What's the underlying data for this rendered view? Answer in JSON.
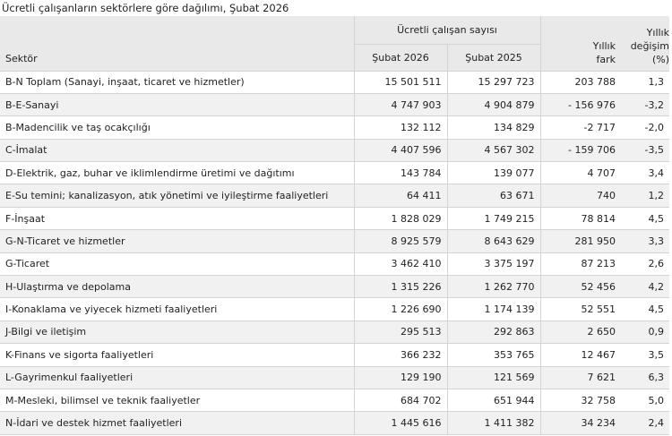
{
  "title": "Ücretli çalışanların sektörlere göre dağılımı, Şubat 2026",
  "table": {
    "header": {
      "sector": "Sektör",
      "group": "Ücretli çalışan sayısı",
      "col1": "Şubat 2026",
      "col2": "Şubat 2025",
      "diff": "Yıllık fark",
      "change": "Yıllık değişim (%)"
    },
    "rows": [
      [
        "B-N Toplam (Sanayi, inşaat, ticaret ve hizmetler)",
        "15 501 511",
        "15 297 723",
        "203 788",
        "1,3"
      ],
      [
        "B-E-Sanayi",
        "4 747 903",
        "4 904 879",
        "- 156 976",
        "-3,2"
      ],
      [
        "B-Madencilik ve taş ocakçılığı",
        "132 112",
        "134 829",
        "-2 717",
        "-2,0"
      ],
      [
        "C-İmalat",
        "4 407 596",
        "4 567 302",
        "- 159 706",
        "-3,5"
      ],
      [
        "D-Elektrik, gaz, buhar ve iklimlendirme üretimi ve dağıtımı",
        "143 784",
        "139 077",
        "4 707",
        "3,4"
      ],
      [
        "E-Su temini; kanalizasyon, atık yönetimi ve iyileştirme faaliyetleri",
        "64 411",
        "63 671",
        "740",
        "1,2"
      ],
      [
        "F-İnşaat",
        "1 828 029",
        "1 749 215",
        "78 814",
        "4,5"
      ],
      [
        "G-N-Ticaret ve hizmetler",
        "8 925 579",
        "8 643 629",
        "281 950",
        "3,3"
      ],
      [
        "G-Ticaret",
        "3 462 410",
        "3 375 197",
        "87 213",
        "2,6"
      ],
      [
        "H-Ulaştırma ve depolama",
        "1 315 226",
        "1 262 770",
        "52 456",
        "4,2"
      ],
      [
        "I-Konaklama ve yiyecek hizmeti faaliyetleri",
        "1 226 690",
        "1 174 139",
        "52 551",
        "4,5"
      ],
      [
        "J-Bilgi ve iletişim",
        "295 513",
        "292 863",
        "2 650",
        "0,9"
      ],
      [
        "K-Finans ve sigorta faaliyetleri",
        "366 232",
        "353 765",
        "12 467",
        "3,5"
      ],
      [
        "L-Gayrimenkul faaliyetleri",
        "129 190",
        "121 569",
        "7 621",
        "6,3"
      ],
      [
        "M-Mesleki, bilimsel ve teknik faaliyetler",
        "684 702",
        "651 944",
        "32 758",
        "5,0"
      ],
      [
        "N-İdari ve destek hizmet faaliyetleri",
        "1 445 616",
        "1 411 382",
        "34 234",
        "2,4"
      ]
    ]
  }
}
